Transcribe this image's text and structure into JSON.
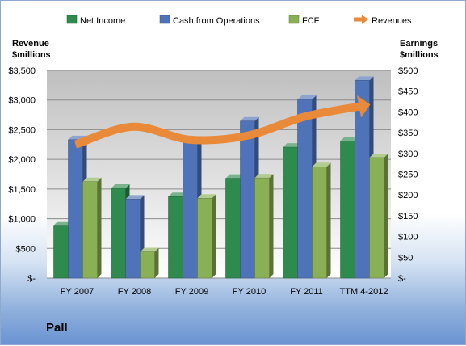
{
  "chart_data": {
    "type": "bar",
    "categories": [
      "FY 2007",
      "FY 2008",
      "FY 2009",
      "FY 2010",
      "FY 2011",
      "TTM 4-2012"
    ],
    "series": [
      {
        "name": "Net Income",
        "axis": "right",
        "color": "#2f8a4e",
        "values": [
          127,
          216,
          196,
          240,
          315,
          330
        ]
      },
      {
        "name": "Cash from Operations",
        "axis": "right",
        "color": "#4f73b8",
        "values": [
          333,
          190,
          327,
          378,
          430,
          476
        ]
      },
      {
        "name": "FCF",
        "axis": "right",
        "color": "#8ab055",
        "values": [
          232,
          63,
          192,
          241,
          268,
          290
        ]
      },
      {
        "name": "Revenues",
        "axis": "left",
        "type": "arrow-line",
        "color": "#e98a3a",
        "values": [
          2250,
          2550,
          2330,
          2400,
          2720,
          2900
        ]
      }
    ],
    "left_axis": {
      "label_line1": "Revenue",
      "label_line2": "$millions",
      "ylim": [
        0,
        3500
      ],
      "ticks": [
        "$-",
        "$500",
        "$1,000",
        "$1,500",
        "$2,000",
        "$2,500",
        "$3,000",
        "$3,500"
      ]
    },
    "right_axis": {
      "label_line1": "Earnings",
      "label_line2": "$millions",
      "ylim": [
        0,
        500
      ],
      "ticks": [
        "$-",
        "$50",
        "$100",
        "$150",
        "$200",
        "$250",
        "$300",
        "$350",
        "$400",
        "$450",
        "$500"
      ]
    },
    "legend": {
      "position": "top"
    },
    "grid": true,
    "company": "Pall"
  }
}
